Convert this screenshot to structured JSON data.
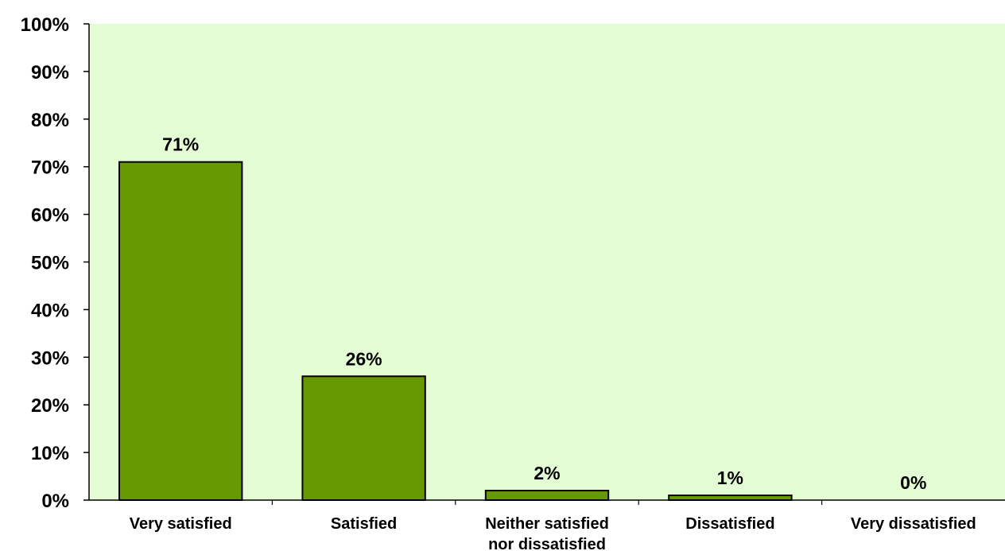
{
  "chart_data": {
    "type": "bar",
    "categories": [
      [
        "Very satisfied"
      ],
      [
        "Satisfied"
      ],
      [
        "Neither satisfied",
        "nor dissatisfied"
      ],
      [
        "Dissatisfied"
      ],
      [
        "Very dissatisfied"
      ]
    ],
    "values": [
      71,
      26,
      2,
      1,
      0
    ],
    "data_labels": [
      "71%",
      "26%",
      "2%",
      "1%",
      "0%"
    ],
    "yticks": [
      0,
      10,
      20,
      30,
      40,
      50,
      60,
      70,
      80,
      90,
      100
    ],
    "ytick_labels": [
      "0%",
      "10%",
      "20%",
      "30%",
      "40%",
      "50%",
      "60%",
      "70%",
      "80%",
      "90%",
      "100%"
    ],
    "ylim": [
      0,
      100
    ],
    "title": "",
    "xlabel": "",
    "ylabel": "",
    "grid": false,
    "legend": "none",
    "colors": {
      "plot_background": "#e4fcd4",
      "bar_fill": "#669900",
      "bar_stroke": "#000000",
      "axis": "#000000"
    }
  }
}
